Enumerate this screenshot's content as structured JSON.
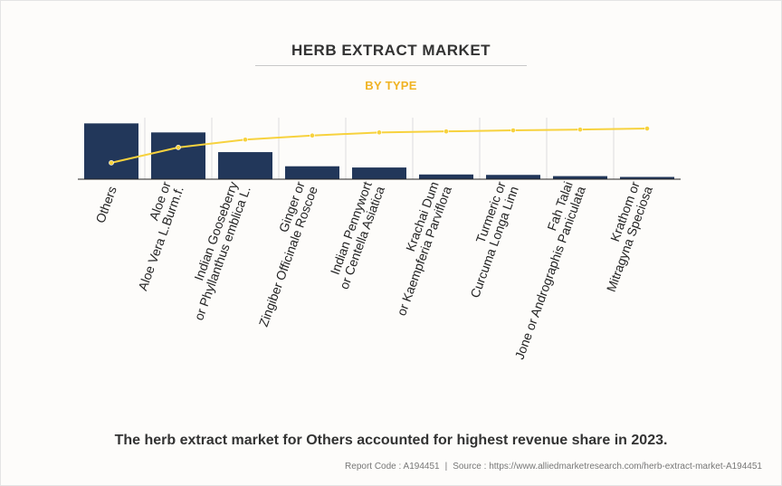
{
  "header": {
    "title": "HERB EXTRACT MARKET",
    "subtitle": "BY TYPE"
  },
  "caption": "The herb extract market for Others accounted for highest revenue share in 2023.",
  "footer": {
    "report_code": "Report Code : A194451",
    "separator": "|",
    "source": "Source : https://www.alliedmarketresearch.com/herb-extract-market-A194451"
  },
  "colors": {
    "bar": "#22375a",
    "line": "#f7d23e",
    "grid": "#dddddd",
    "axis": "#222222"
  },
  "chart_data": {
    "type": "bar",
    "title": "",
    "xlabel": "",
    "ylabel": "",
    "categories": [
      [
        "Others"
      ],
      [
        "Aloe or",
        "Aloe Vera L.Burm.f."
      ],
      [
        "Indian Gooseberry",
        "or Phyllanthus emblica L."
      ],
      [
        "Ginger or",
        "Zingiber Officinale Roscoe"
      ],
      [
        "Indian Pennywort",
        "or Centella Asiatica"
      ],
      [
        "Krachai Dum",
        "or Kaempferia Parviflora"
      ],
      [
        "Turmeric or",
        "Curcuma Longa Linn"
      ],
      [
        "Fah Talai",
        "Jone or Andrographis Paniculata"
      ],
      [
        "Krathom or",
        "Mitragyna Speciosa"
      ]
    ],
    "series": [
      {
        "type": "bar",
        "values": [
          27.2,
          22.8,
          13.2,
          6.3,
          5.7,
          2.3,
          2.1,
          1.5,
          1.1
        ]
      },
      {
        "type": "line",
        "values": [
          8.0,
          15.5,
          19.3,
          21.3,
          22.8,
          23.3,
          23.8,
          24.2,
          24.7
        ]
      }
    ],
    "ylim": [
      0,
      30
    ],
    "grid": true,
    "legend": "none"
  }
}
